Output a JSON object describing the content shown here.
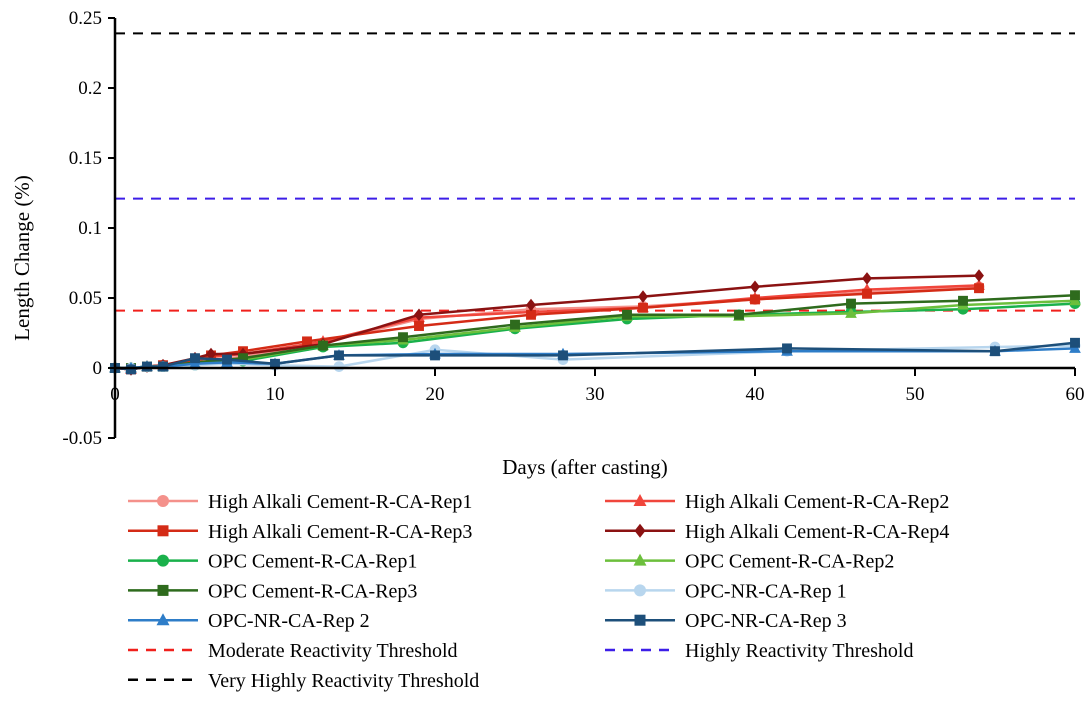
{
  "chart_data": {
    "type": "line",
    "xlabel": "Days (after casting)",
    "ylabel": "Length Change (%)",
    "xlim": [
      0,
      60
    ],
    "ylim": [
      -0.05,
      0.25
    ],
    "xticks": [
      "0",
      "10",
      "20",
      "30",
      "40",
      "50",
      "60"
    ],
    "yticks": [
      "-0.05",
      "0",
      "0.05",
      "0.1",
      "0.15",
      "0.2",
      "0.25"
    ],
    "grid": false,
    "legend_position": "bottom",
    "series": [
      {
        "name": "High Alkali Cement-R-CA-Rep1",
        "color": "#f4918b",
        "marker": "circle",
        "x": [
          0,
          1,
          2,
          3,
          5,
          6,
          8,
          12,
          13,
          19,
          26,
          33,
          40,
          47,
          54
        ],
        "y": [
          0,
          0,
          0.001,
          0.002,
          0.004,
          0.006,
          0.008,
          0.016,
          0.018,
          0.035,
          0.042,
          0.044,
          0.049,
          0.054,
          0.058
        ]
      },
      {
        "name": "High Alkali Cement-R-CA-Rep2",
        "color": "#f0463c",
        "marker": "triangle",
        "x": [
          0,
          1,
          2,
          3,
          5,
          6,
          8,
          12,
          13,
          19,
          26,
          33,
          40,
          47,
          54
        ],
        "y": [
          0,
          -0.001,
          0.001,
          0.002,
          0.005,
          0.008,
          0.01,
          0.017,
          0.019,
          0.036,
          0.04,
          0.043,
          0.05,
          0.056,
          0.059
        ]
      },
      {
        "name": "High Alkali Cement-R-CA-Rep3",
        "color": "#d42b16",
        "marker": "square",
        "x": [
          0,
          1,
          2,
          3,
          5,
          6,
          8,
          12,
          19,
          26,
          33,
          40,
          47,
          54
        ],
        "y": [
          0,
          -0.001,
          0.001,
          0.002,
          0.006,
          0.009,
          0.012,
          0.019,
          0.03,
          0.038,
          0.043,
          0.049,
          0.053,
          0.057
        ]
      },
      {
        "name": "High Alkali Cement-R-CA-Rep4",
        "color": "#8b1212",
        "marker": "diamond",
        "x": [
          0,
          1,
          2,
          3,
          5,
          6,
          8,
          13,
          19,
          26,
          33,
          40,
          47,
          54
        ],
        "y": [
          0,
          -0.001,
          0.001,
          0.002,
          0.007,
          0.01,
          0.01,
          0.017,
          0.038,
          0.045,
          0.051,
          0.058,
          0.064,
          0.066
        ]
      },
      {
        "name": "OPC Cement-R-CA-Rep1",
        "color": "#1ab14b",
        "marker": "circle",
        "x": [
          0,
          1,
          2,
          3,
          5,
          8,
          13,
          18,
          25,
          32,
          39,
          46,
          53,
          60
        ],
        "y": [
          0,
          0,
          0.001,
          0.001,
          0.002,
          0.005,
          0.015,
          0.018,
          0.028,
          0.035,
          0.038,
          0.04,
          0.042,
          0.046
        ]
      },
      {
        "name": "OPC Cement-R-CA-Rep2",
        "color": "#6cbf3c",
        "marker": "triangle",
        "x": [
          0,
          1,
          2,
          3,
          5,
          8,
          13,
          18,
          25,
          32,
          39,
          46,
          53,
          60
        ],
        "y": [
          0,
          0,
          0.001,
          0.001,
          0.003,
          0.006,
          0.016,
          0.02,
          0.029,
          0.037,
          0.037,
          0.039,
          0.045,
          0.048
        ]
      },
      {
        "name": "OPC Cement-R-CA-Rep3",
        "color": "#2e6b1d",
        "marker": "square",
        "x": [
          0,
          1,
          2,
          3,
          5,
          8,
          13,
          18,
          25,
          32,
          39,
          46,
          53,
          60
        ],
        "y": [
          0,
          0,
          0.001,
          0.001,
          0.004,
          0.007,
          0.016,
          0.022,
          0.031,
          0.038,
          0.038,
          0.046,
          0.048,
          0.052
        ]
      },
      {
        "name": "OPC-NR-CA-Rep 1",
        "color": "#b8d6ee",
        "marker": "circle",
        "x": [
          0,
          1,
          2,
          3,
          5,
          7,
          10,
          14,
          20,
          28,
          42,
          55,
          60
        ],
        "y": [
          0,
          0,
          0.001,
          0.001,
          0.002,
          0.003,
          0.002,
          0.001,
          0.013,
          0.006,
          0.012,
          0.015,
          0.016
        ]
      },
      {
        "name": "OPC-NR-CA-Rep 2",
        "color": "#2e7dc8",
        "marker": "triangle",
        "x": [
          0,
          1,
          2,
          3,
          5,
          7,
          10,
          14,
          20,
          28,
          42,
          55,
          60
        ],
        "y": [
          0,
          0,
          0.001,
          0.001,
          0.003,
          0.004,
          0.003,
          0.009,
          0.01,
          0.01,
          0.012,
          0.012,
          0.014
        ]
      },
      {
        "name": "OPC-NR-CA-Rep 3",
        "color": "#1d4f7a",
        "marker": "square",
        "x": [
          0,
          1,
          2,
          3,
          5,
          7,
          10,
          14,
          20,
          28,
          42,
          55,
          60
        ],
        "y": [
          0,
          -0.001,
          0.001,
          0.001,
          0.007,
          0.006,
          0.003,
          0.009,
          0.009,
          0.009,
          0.014,
          0.012,
          0.018
        ]
      }
    ],
    "thresholds": [
      {
        "name": "Moderate Reactivity Threshold",
        "color": "#f0201c",
        "y": 0.041
      },
      {
        "name": "Highly Reactivity Threshold",
        "color": "#3c1ee8",
        "y": 0.121
      },
      {
        "name": "Very Highly Reactivity Threshold",
        "color": "#000000",
        "y": 0.239
      }
    ]
  }
}
